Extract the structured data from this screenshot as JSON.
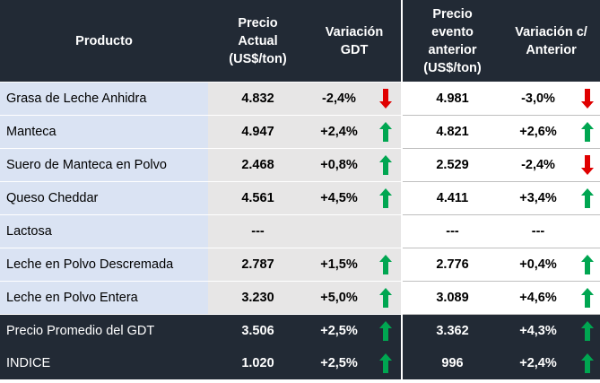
{
  "headers": {
    "product": "Producto",
    "price_line1": "Precio",
    "price_line2": "Actual",
    "price_line3": "(US$/ton)",
    "var_line1": "Variación",
    "var_line2": "GDT",
    "prev_line1": "Precio",
    "prev_line2": "evento",
    "prev_line3": "anterior",
    "prev_line4": "(US$/ton)",
    "var2_line1": "Variación c/",
    "var2_line2": "Anterior"
  },
  "rows": [
    {
      "product": "Grasa de Leche Anhidra",
      "price": "4.832",
      "var": "-2,4%",
      "var_dir": "down",
      "prev": "4.981",
      "var2": "-3,0%",
      "var2_dir": "down"
    },
    {
      "product": "Manteca",
      "price": "4.947",
      "var": "+2,4%",
      "var_dir": "up",
      "prev": "4.821",
      "var2": "+2,6%",
      "var2_dir": "up"
    },
    {
      "product": "Suero de Manteca en Polvo",
      "price": "2.468",
      "var": "+0,8%",
      "var_dir": "up",
      "prev": "2.529",
      "var2": "-2,4%",
      "var2_dir": "down"
    },
    {
      "product": "Queso Cheddar",
      "price": "4.561",
      "var": "+4,5%",
      "var_dir": "up",
      "prev": "4.411",
      "var2": "+3,4%",
      "var2_dir": "up"
    },
    {
      "product": "Lactosa",
      "price": "---",
      "var": "",
      "var_dir": "none",
      "prev": "---",
      "var2": "---",
      "var2_dir": "none"
    },
    {
      "product": "Leche en Polvo Descremada",
      "price": "2.787",
      "var": "+1,5%",
      "var_dir": "up",
      "prev": "2.776",
      "var2": "+0,4%",
      "var2_dir": "up"
    },
    {
      "product": "Leche en Polvo Entera",
      "price": "3.230",
      "var": "+5,0%",
      "var_dir": "up",
      "prev": "3.089",
      "var2": "+4,6%",
      "var2_dir": "up"
    }
  ],
  "summary_rows": [
    {
      "product": "Precio Promedio del GDT",
      "price": "3.506",
      "var": "+2,5%",
      "var_dir": "up",
      "prev": "3.362",
      "var2": "+4,3%",
      "var2_dir": "up"
    },
    {
      "product": "INDICE",
      "price": "1.020",
      "var": "+2,5%",
      "var_dir": "up",
      "prev": "996",
      "var2": "+2,4%",
      "var2_dir": "up"
    }
  ],
  "colors": {
    "header_bg": "#222a35",
    "product_bg": "#dae3f3",
    "gdt_bg": "#e7e6e6",
    "arrow_up": "#00a651",
    "arrow_down": "#e00000"
  }
}
